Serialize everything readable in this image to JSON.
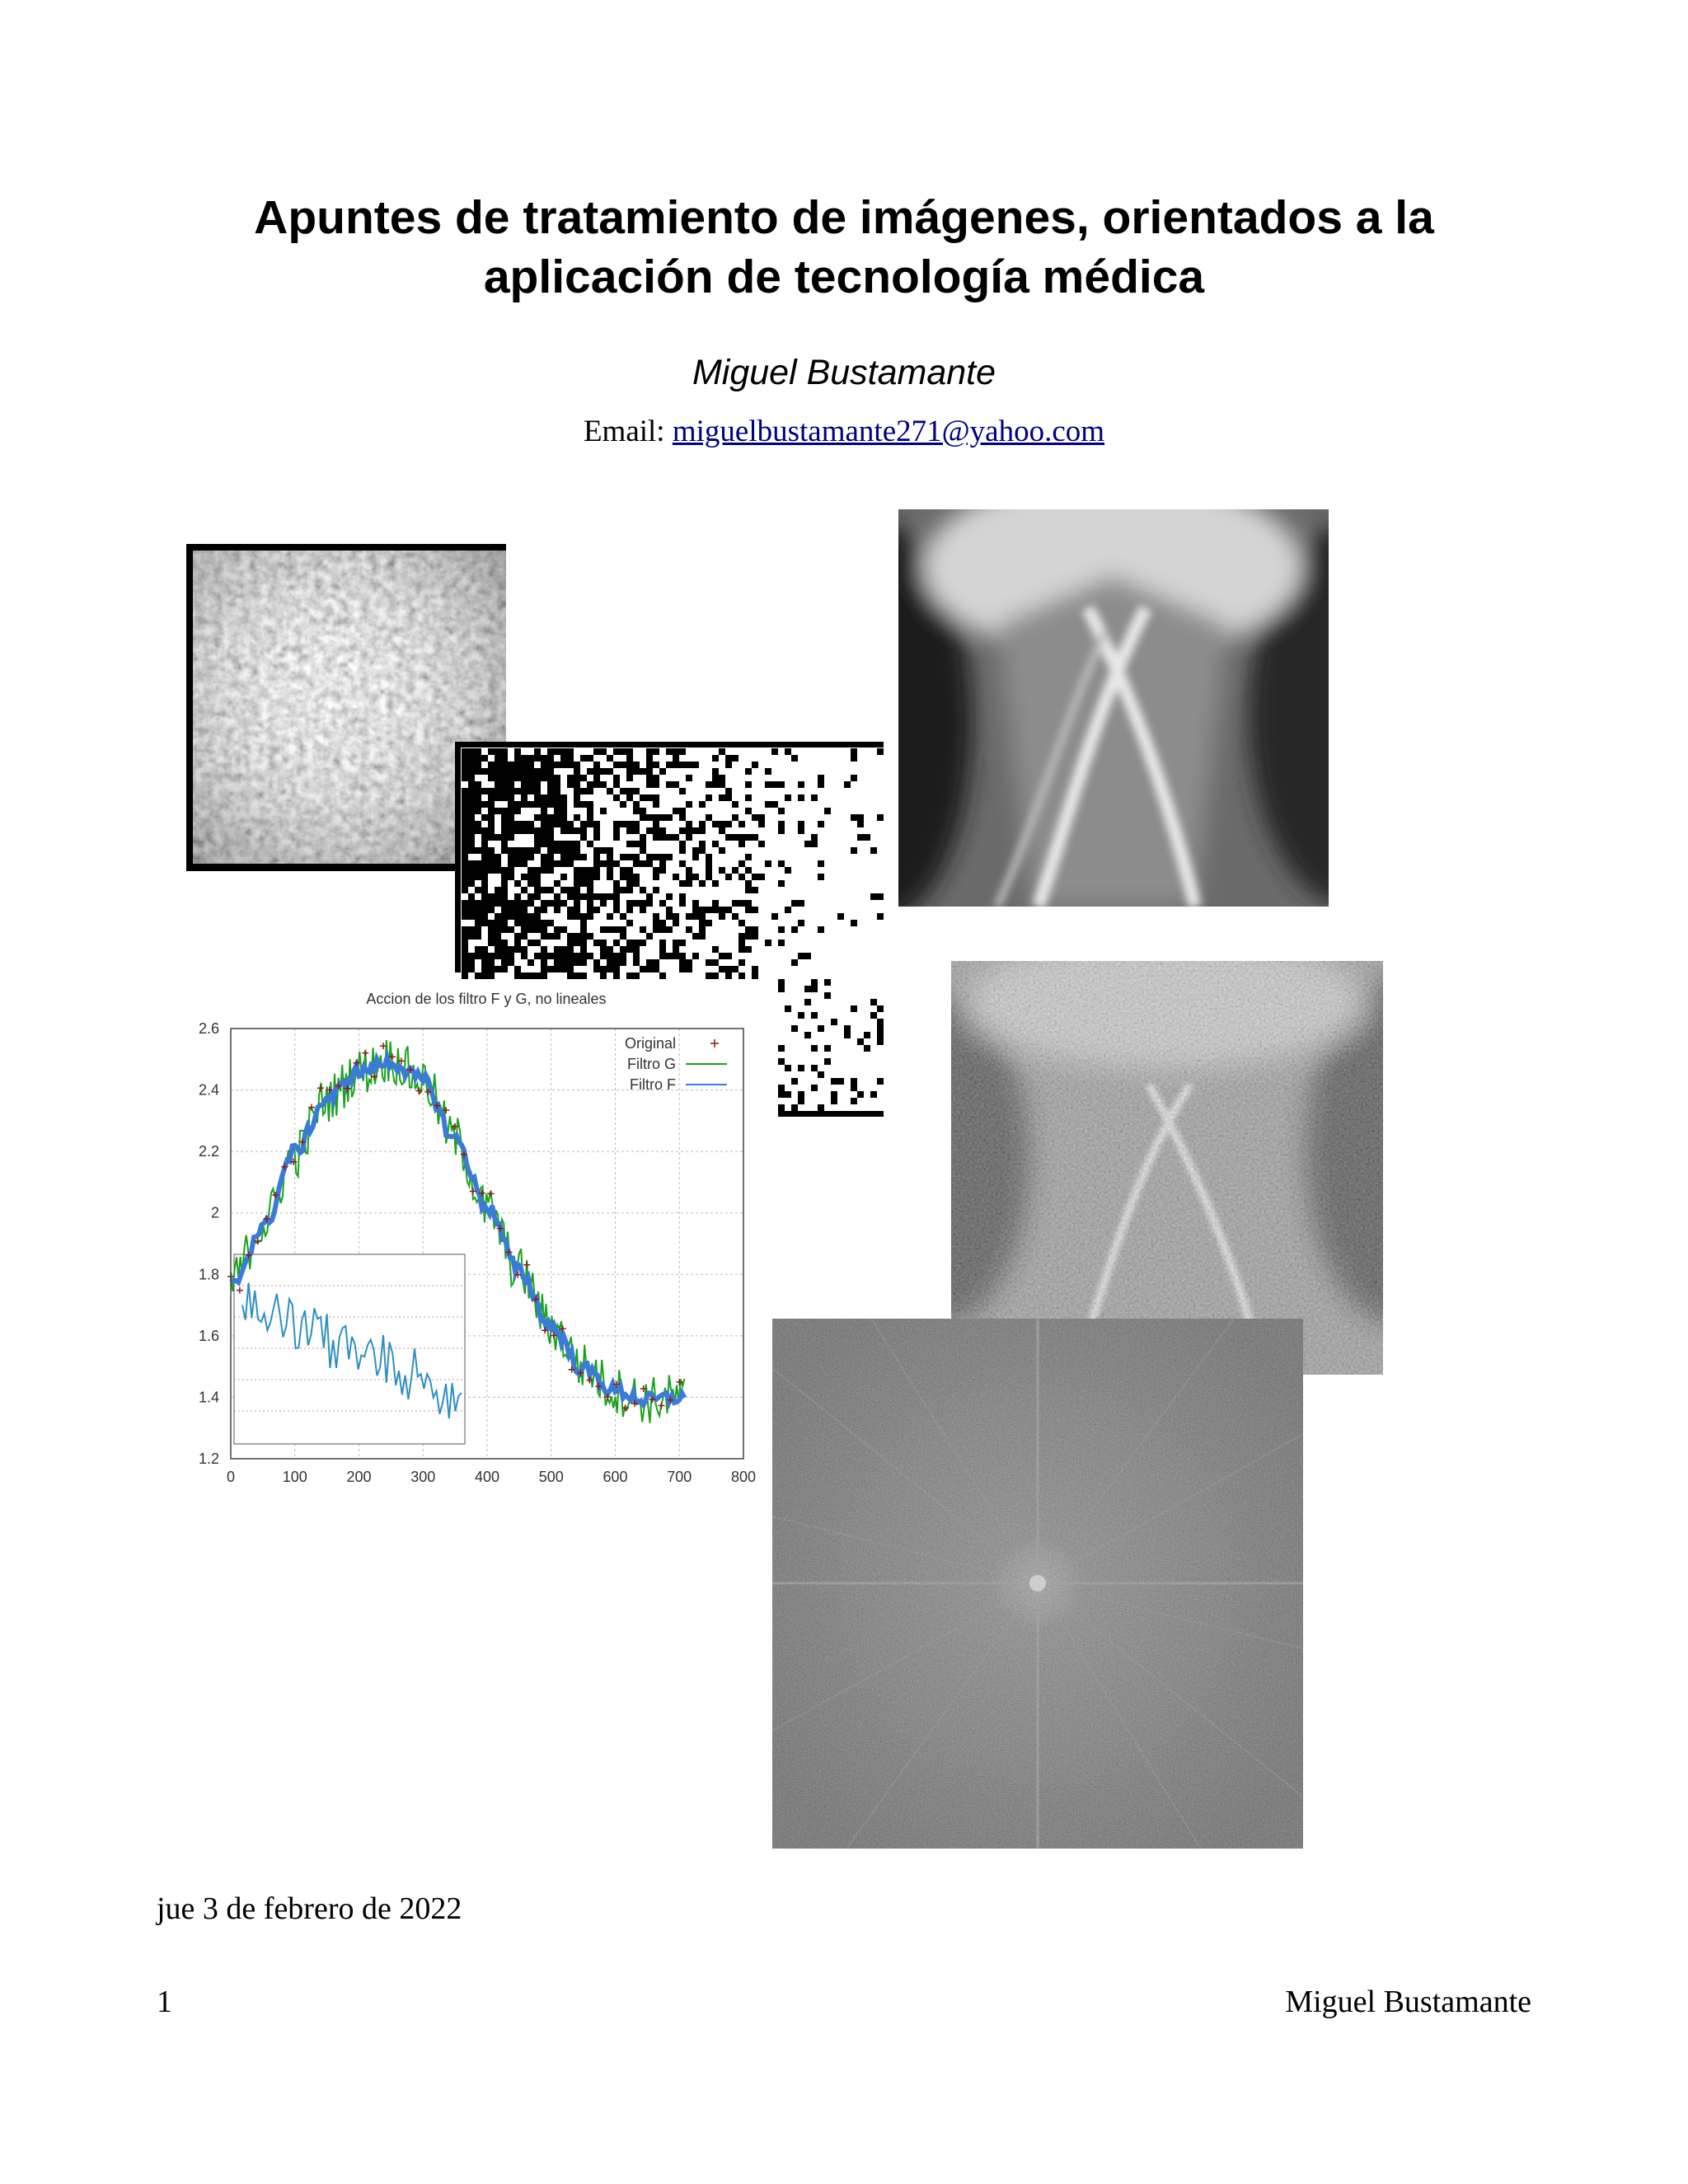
{
  "document": {
    "title_line1": "Apuntes de tratamiento de imágenes, orientados a la",
    "title_line2": "aplicación de tecnología médica",
    "author": "Miguel Bustamante",
    "email_label": "Email:",
    "email": "miguelbustamante271@yahoo.com",
    "date": "jue 3 de febrero de 2022",
    "page_number": "1",
    "footer_author": "Miguel Bustamante"
  },
  "figures": {
    "texture": "texture-photo",
    "binary_noise": "binary-noise-image",
    "xray_original": "xray-image",
    "xray_filtered": "xray-embossed-image",
    "fourier": "fourier-spectrum-image"
  },
  "chart_data": {
    "type": "line",
    "title": "Accion de los filtro F y G, no lineales",
    "xlim": [
      0,
      800
    ],
    "ylim": [
      1.2,
      2.6
    ],
    "x_ticks": [
      0,
      100,
      200,
      300,
      400,
      500,
      600,
      700,
      800
    ],
    "y_ticks": [
      1.2,
      1.4,
      1.6,
      1.8,
      2.0,
      2.2,
      2.4,
      2.6
    ],
    "x_tick_labels": [
      "0",
      "100",
      "200",
      "300",
      "400",
      "500",
      "600",
      "700",
      "800"
    ],
    "y_tick_labels": [
      "1.2",
      "1.4",
      "1.6",
      "1.8",
      "2",
      "2.2",
      "2.4",
      "2.6"
    ],
    "grid": true,
    "legend_position": "top-right",
    "series": [
      {
        "name": "Original",
        "color": "#8b1a1a",
        "x": [
          0,
          50,
          100,
          150,
          200,
          250,
          300,
          350,
          400,
          450,
          500,
          550,
          600,
          650,
          700
        ],
        "y": [
          1.75,
          1.95,
          2.2,
          2.38,
          2.47,
          2.5,
          2.44,
          2.25,
          2.02,
          1.82,
          1.64,
          1.5,
          1.42,
          1.39,
          1.4
        ]
      },
      {
        "name": "Filtro G",
        "color": "#1aa31a",
        "x": [
          0,
          50,
          100,
          150,
          200,
          250,
          300,
          350,
          400,
          450,
          500,
          550,
          600,
          650,
          700
        ],
        "y": [
          1.77,
          1.96,
          2.19,
          2.37,
          2.46,
          2.5,
          2.43,
          2.24,
          2.01,
          1.81,
          1.63,
          1.5,
          1.42,
          1.39,
          1.4
        ]
      },
      {
        "name": "Filtro F",
        "color": "#3a7bd5",
        "x": [
          0,
          50,
          100,
          150,
          200,
          250,
          300,
          350,
          400,
          450,
          500,
          550,
          600,
          650,
          700
        ],
        "y": [
          1.76,
          1.95,
          2.2,
          2.37,
          2.46,
          2.49,
          2.43,
          2.24,
          2.02,
          1.81,
          1.63,
          1.49,
          1.42,
          1.39,
          1.4
        ]
      }
    ]
  }
}
